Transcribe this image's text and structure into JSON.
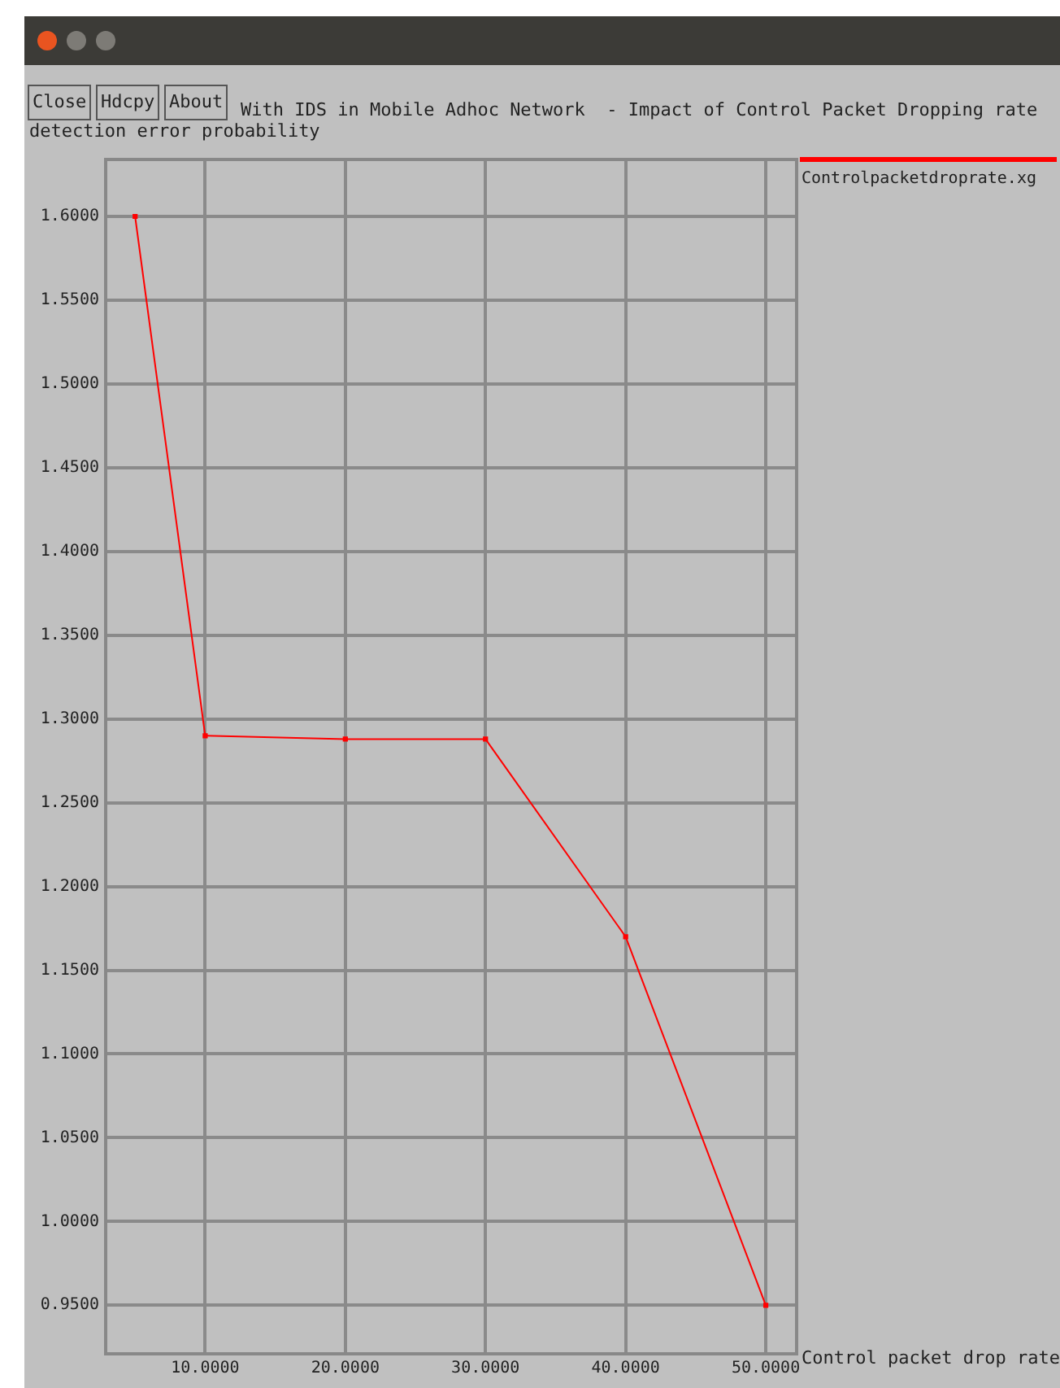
{
  "chart_data": {
    "type": "line",
    "title": "With IDS in Mobile Adhoc Network  - Impact of Control Packet Dropping rate",
    "ylabel": "detection error probability",
    "xlabel": "Control packet drop rate",
    "x": [
      5,
      10,
      20,
      30,
      40,
      50
    ],
    "series": [
      {
        "name": "Controlpacketdroprate.xg",
        "color": "#ff0000",
        "values": [
          1.6,
          1.29,
          1.288,
          1.288,
          1.17,
          0.95
        ]
      }
    ],
    "xlim": [
      2.9,
      52.2
    ],
    "xticks": [
      {
        "value": 10,
        "label": "10.0000"
      },
      {
        "value": 20,
        "label": "20.0000"
      },
      {
        "value": 30,
        "label": "30.0000"
      },
      {
        "value": 40,
        "label": "40.0000"
      },
      {
        "value": 50,
        "label": "50.0000"
      }
    ],
    "ylim": [
      0.921,
      1.634
    ],
    "yticks": [
      {
        "value": 0.95,
        "label": "0.9500"
      },
      {
        "value": 1.0,
        "label": "1.0000"
      },
      {
        "value": 1.05,
        "label": "1.0500"
      },
      {
        "value": 1.1,
        "label": "1.1000"
      },
      {
        "value": 1.15,
        "label": "1.1500"
      },
      {
        "value": 1.2,
        "label": "1.2000"
      },
      {
        "value": 1.25,
        "label": "1.2500"
      },
      {
        "value": 1.3,
        "label": "1.3000"
      },
      {
        "value": 1.35,
        "label": "1.3500"
      },
      {
        "value": 1.4,
        "label": "1.4000"
      },
      {
        "value": 1.45,
        "label": "1.4500"
      },
      {
        "value": 1.5,
        "label": "1.5000"
      },
      {
        "value": 1.55,
        "label": "1.5500"
      },
      {
        "value": 1.6,
        "label": "1.6000"
      }
    ],
    "annotations": [
      "Close",
      "Hdcpy",
      "About"
    ],
    "grid": true,
    "legend": "top right",
    "marker": "square",
    "line_style": "solid"
  }
}
